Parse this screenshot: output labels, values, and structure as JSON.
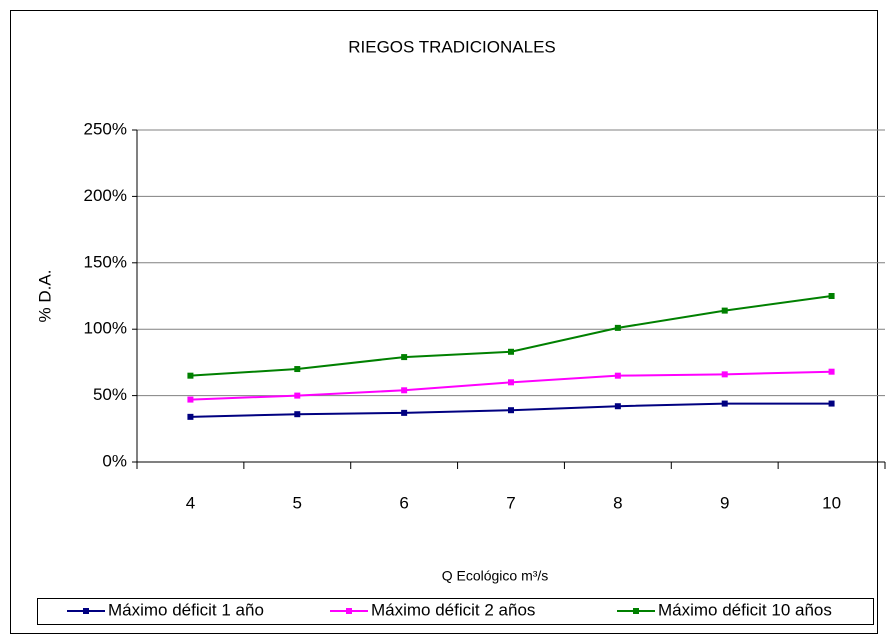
{
  "chart_data": {
    "type": "line",
    "title": "RIEGOS TRADICIONALES",
    "x_label": "Q Ecológico m³/s",
    "y_label": "% D.A.",
    "categories": [
      "4",
      "5",
      "6",
      "7",
      "8",
      "9",
      "10"
    ],
    "series": [
      {
        "name": "Máximo déficit 1 año",
        "color": "#000080",
        "values": [
          34,
          36,
          37,
          39,
          42,
          44,
          44
        ]
      },
      {
        "name": "Máximo déficit 2 años",
        "color": "#ff00ff",
        "values": [
          47,
          50,
          54,
          60,
          65,
          66,
          68
        ]
      },
      {
        "name": "Máximo déficit 10 años",
        "color": "#008000",
        "values": [
          65,
          70,
          79,
          83,
          101,
          114,
          125
        ]
      }
    ],
    "ylim": [
      0,
      250
    ],
    "yticks": [
      {
        "value": 0,
        "label": "0%"
      },
      {
        "value": 50,
        "label": "50%"
      },
      {
        "value": 100,
        "label": "100%"
      },
      {
        "value": 150,
        "label": "150%"
      },
      {
        "value": 200,
        "label": "200%"
      },
      {
        "value": 250,
        "label": "250%"
      }
    ],
    "grid": true,
    "legend": "bottom"
  }
}
